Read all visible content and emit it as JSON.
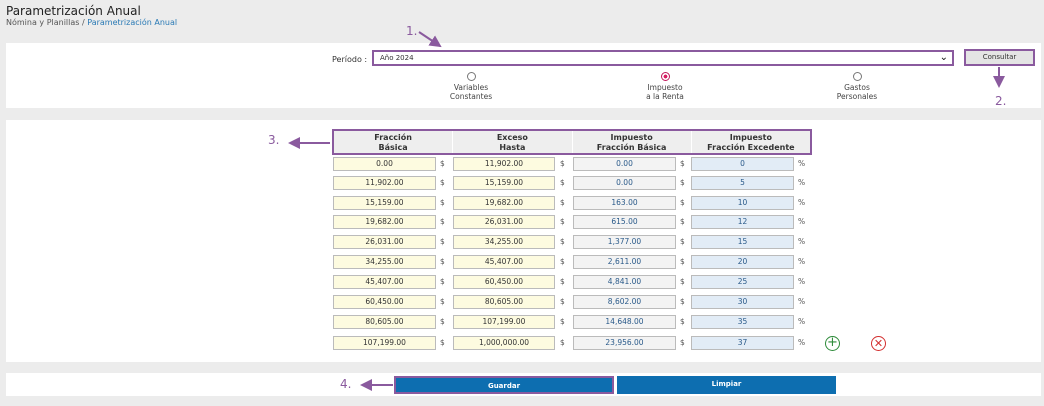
{
  "header": {
    "title": "Parametrización Anual",
    "breadcrumb_root": "Nómina y Planillas",
    "breadcrumb_sep": " / ",
    "breadcrumb_current": "Parametrización Anual"
  },
  "filters": {
    "period_label": "Período :",
    "period_value": "Año 2024",
    "consultar_label": "Consultar",
    "radios": [
      {
        "line1": "Variables",
        "line2": "Constantes",
        "checked": false
      },
      {
        "line1": "Impuesto",
        "line2": "a la Renta",
        "checked": true
      },
      {
        "line1": "Gastos",
        "line2": "Personales",
        "checked": false
      }
    ]
  },
  "annotations": [
    "1.",
    "2.",
    "3.",
    "4."
  ],
  "table": {
    "headers": [
      {
        "line1": "Fracción",
        "line2": "Básica"
      },
      {
        "line1": "Exceso",
        "line2": "Hasta"
      },
      {
        "line1": "Impuesto",
        "line2": "Fracción Básica"
      },
      {
        "line1": "Impuesto",
        "line2": "Fracción Excedente"
      }
    ],
    "currency": "$",
    "percent": "%",
    "rows": [
      [
        "0.00",
        "11,902.00",
        "0.00",
        "0"
      ],
      [
        "11,902.00",
        "15,159.00",
        "0.00",
        "5"
      ],
      [
        "15,159.00",
        "19,682.00",
        "163.00",
        "10"
      ],
      [
        "19,682.00",
        "26,031.00",
        "615.00",
        "12"
      ],
      [
        "26,031.00",
        "34,255.00",
        "1,377.00",
        "15"
      ],
      [
        "34,255.00",
        "45,407.00",
        "2,611.00",
        "20"
      ],
      [
        "45,407.00",
        "60,450.00",
        "4,841.00",
        "25"
      ],
      [
        "60,450.00",
        "80,605.00",
        "8,602.00",
        "30"
      ],
      [
        "80,605.00",
        "107,199.00",
        "14,648.00",
        "35"
      ],
      [
        "107,199.00",
        "1,000,000.00",
        "23,956.00",
        "37"
      ]
    ]
  },
  "actions": {
    "guardar_label": "Guardar",
    "limpiar_label": "Limpiar"
  },
  "colors": {
    "accent_annotation": "#8a5a9e",
    "primary_button": "#0d6eb0",
    "link": "#2a7ab5"
  }
}
